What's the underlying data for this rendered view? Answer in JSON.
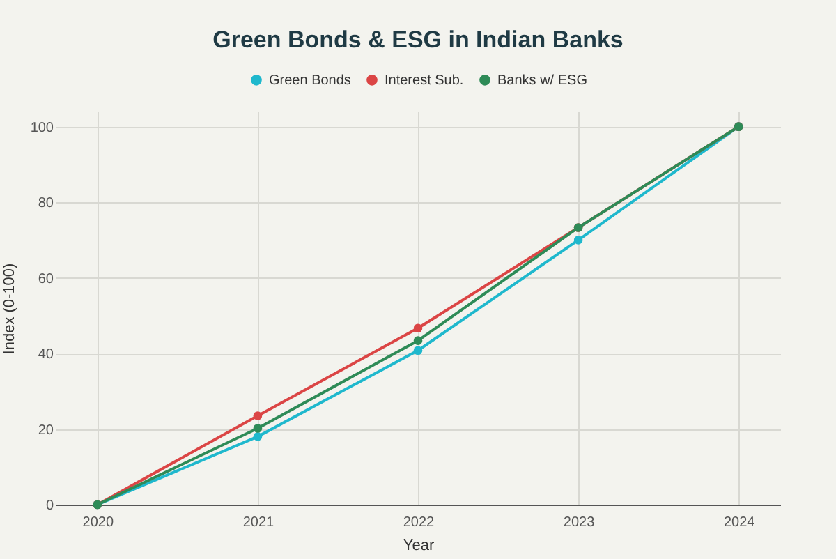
{
  "chart_data": {
    "type": "line",
    "title": "Green Bonds & ESG in Indian Banks",
    "xlabel": "Year",
    "ylabel": "Index (0-100)",
    "categories": [
      "2020",
      "2021",
      "2022",
      "2023",
      "2024"
    ],
    "series": [
      {
        "name": "Green Bonds",
        "color": "#1fb8cd",
        "values": [
          0,
          18,
          40.8,
          70,
          100
        ]
      },
      {
        "name": "Interest Sub.",
        "color": "#db4545",
        "values": [
          0,
          23.5,
          46.7,
          73.3,
          100
        ]
      },
      {
        "name": "Banks w/ ESG",
        "color": "#2e8b57",
        "values": [
          0,
          20.2,
          43.4,
          73.3,
          100
        ]
      }
    ],
    "ylim": [
      0,
      104
    ],
    "yticks": [
      0,
      20,
      40,
      60,
      80,
      100
    ],
    "grid": true,
    "legend": "top",
    "marker": "circle",
    "line_style": "solid"
  }
}
